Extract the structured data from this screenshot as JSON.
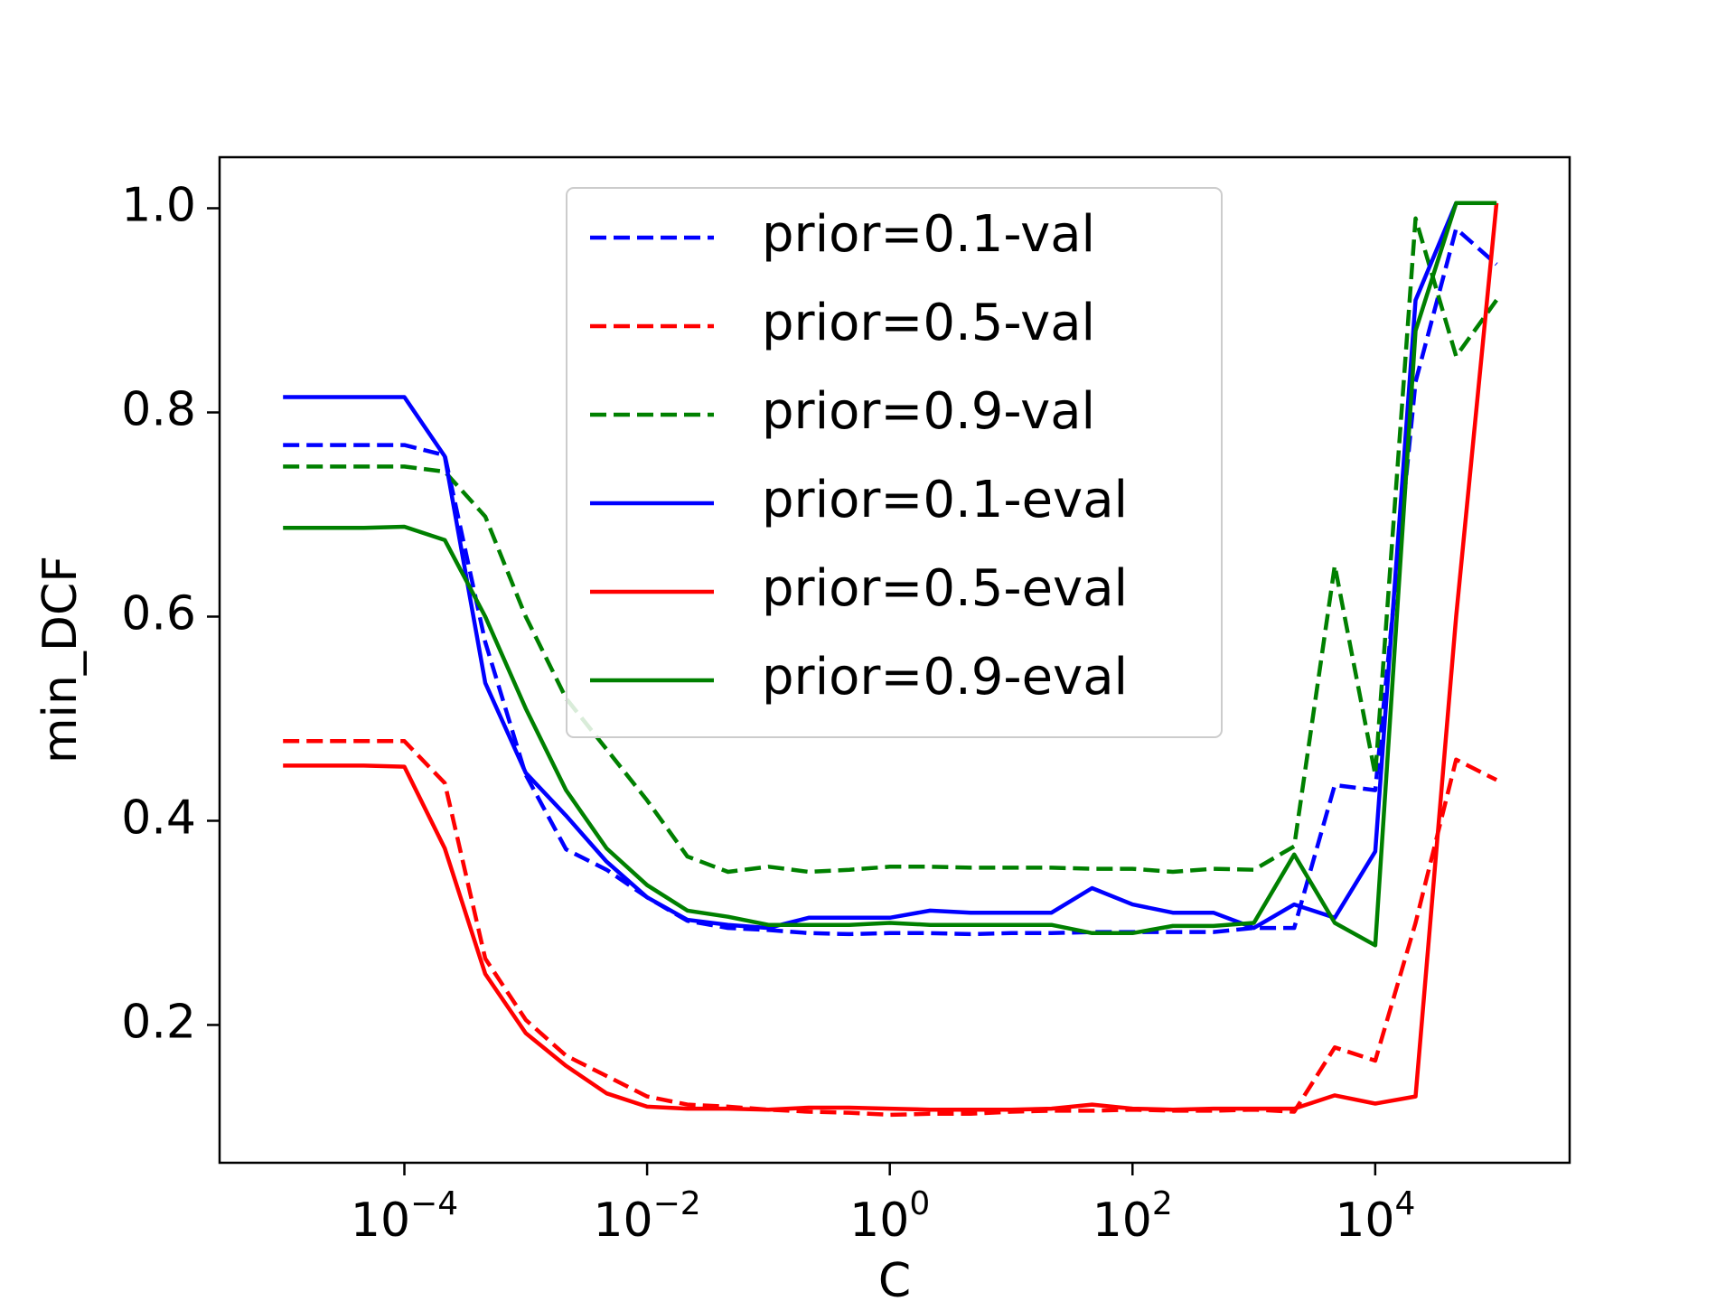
{
  "chart_data": {
    "type": "line",
    "xlabel": "C",
    "ylabel": "min_DCF",
    "xscale": "log",
    "xlim": [
      3e-06,
      400000.0
    ],
    "ylim": [
      0.065,
      1.05
    ],
    "grid": false,
    "legend_position": "top-center",
    "x_tick_labels": [
      {
        "value": 0.0001,
        "base": "10",
        "exp": "−4"
      },
      {
        "value": 0.01,
        "base": "10",
        "exp": "−2"
      },
      {
        "value": 1,
        "base": "10",
        "exp": "0"
      },
      {
        "value": 100,
        "base": "10",
        "exp": "2"
      },
      {
        "value": 10000,
        "base": "10",
        "exp": "4"
      }
    ],
    "y_ticks": [
      0.2,
      0.4,
      0.6,
      0.8,
      1.0
    ],
    "y_tick_labels": [
      "0.2",
      "0.4",
      "0.6",
      "0.8",
      "1.0"
    ],
    "x": [
      1e-05,
      2.15e-05,
      4.64e-05,
      0.0001,
      0.000215,
      0.000464,
      0.001,
      0.00215,
      0.00464,
      0.01,
      0.0215,
      0.0464,
      0.1,
      0.215,
      0.464,
      1.0,
      2.15,
      4.64,
      10,
      21.5,
      46.4,
      100,
      215,
      464,
      1000,
      2150,
      4640,
      10000,
      21500,
      46400,
      100000
    ],
    "series": [
      {
        "name": "prior=0.1-val",
        "color": "#0000ff",
        "style": "dashed",
        "values": [
          0.768,
          0.768,
          0.768,
          0.768,
          0.758,
          0.575,
          0.445,
          0.372,
          0.352,
          0.325,
          0.302,
          0.295,
          0.293,
          0.29,
          0.289,
          0.29,
          0.29,
          0.289,
          0.29,
          0.29,
          0.291,
          0.291,
          0.291,
          0.291,
          0.295,
          0.295,
          0.435,
          0.43,
          0.83,
          0.98,
          0.945
        ]
      },
      {
        "name": "prior=0.5-val",
        "color": "#ff0000",
        "style": "dashed",
        "values": [
          0.478,
          0.478,
          0.478,
          0.478,
          0.437,
          0.265,
          0.205,
          0.17,
          0.15,
          0.13,
          0.122,
          0.12,
          0.117,
          0.115,
          0.114,
          0.112,
          0.113,
          0.113,
          0.115,
          0.116,
          0.116,
          0.117,
          0.116,
          0.116,
          0.117,
          0.115,
          0.178,
          0.165,
          0.3,
          0.46,
          0.44
        ]
      },
      {
        "name": "prior=0.9-val",
        "color": "#008000",
        "style": "dashed",
        "values": [
          0.747,
          0.747,
          0.747,
          0.747,
          0.742,
          0.698,
          0.6,
          0.52,
          0.47,
          0.42,
          0.365,
          0.35,
          0.355,
          0.35,
          0.352,
          0.355,
          0.355,
          0.354,
          0.354,
          0.354,
          0.353,
          0.353,
          0.35,
          0.353,
          0.352,
          0.375,
          0.65,
          0.445,
          0.99,
          0.855,
          0.91
        ]
      },
      {
        "name": "prior=0.1-eval",
        "color": "#0000ff",
        "style": "solid",
        "values": [
          0.815,
          0.815,
          0.815,
          0.815,
          0.757,
          0.535,
          0.447,
          0.405,
          0.36,
          0.325,
          0.303,
          0.298,
          0.295,
          0.305,
          0.305,
          0.305,
          0.312,
          0.31,
          0.31,
          0.31,
          0.334,
          0.318,
          0.31,
          0.31,
          0.295,
          0.318,
          0.305,
          0.37,
          0.91,
          1.005,
          1.005
        ]
      },
      {
        "name": "prior=0.5-eval",
        "color": "#ff0000",
        "style": "solid",
        "values": [
          0.454,
          0.454,
          0.454,
          0.453,
          0.373,
          0.25,
          0.192,
          0.16,
          0.133,
          0.12,
          0.118,
          0.118,
          0.117,
          0.119,
          0.119,
          0.118,
          0.117,
          0.117,
          0.117,
          0.118,
          0.122,
          0.118,
          0.117,
          0.118,
          0.118,
          0.118,
          0.131,
          0.123,
          0.13,
          0.6,
          1.005
        ]
      },
      {
        "name": "prior=0.9-eval",
        "color": "#008000",
        "style": "solid",
        "values": [
          0.687,
          0.687,
          0.687,
          0.688,
          0.675,
          0.6,
          0.51,
          0.43,
          0.373,
          0.337,
          0.312,
          0.306,
          0.298,
          0.298,
          0.298,
          0.3,
          0.298,
          0.298,
          0.298,
          0.298,
          0.29,
          0.29,
          0.297,
          0.297,
          0.3,
          0.367,
          0.3,
          0.278,
          0.88,
          1.005,
          1.005
        ]
      }
    ]
  }
}
